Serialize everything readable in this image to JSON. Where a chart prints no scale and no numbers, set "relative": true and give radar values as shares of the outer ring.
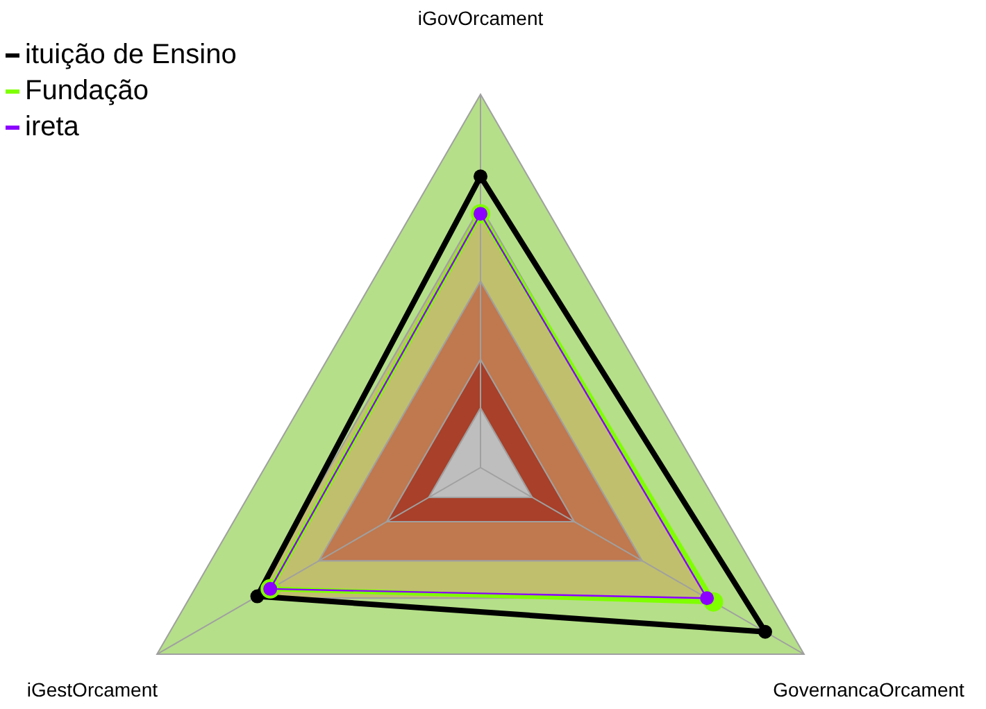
{
  "chart_data": {
    "type": "radar",
    "relative": true,
    "categories": [
      "iGovOrcament",
      "GovernancaOrcament",
      "iGestOrcament"
    ],
    "series": [
      {
        "name": "ituição de Ensino",
        "color": "#000000",
        "values": [
          0.78,
          0.88,
          0.69
        ]
      },
      {
        "name": "Fundação",
        "color": "#7fff00",
        "values": [
          0.68,
          0.72,
          0.65
        ]
      },
      {
        "name": "ireta",
        "color": "#8b00ff",
        "values": [
          0.68,
          0.7,
          0.65
        ]
      }
    ],
    "legend": "top left",
    "marker": "circle"
  }
}
